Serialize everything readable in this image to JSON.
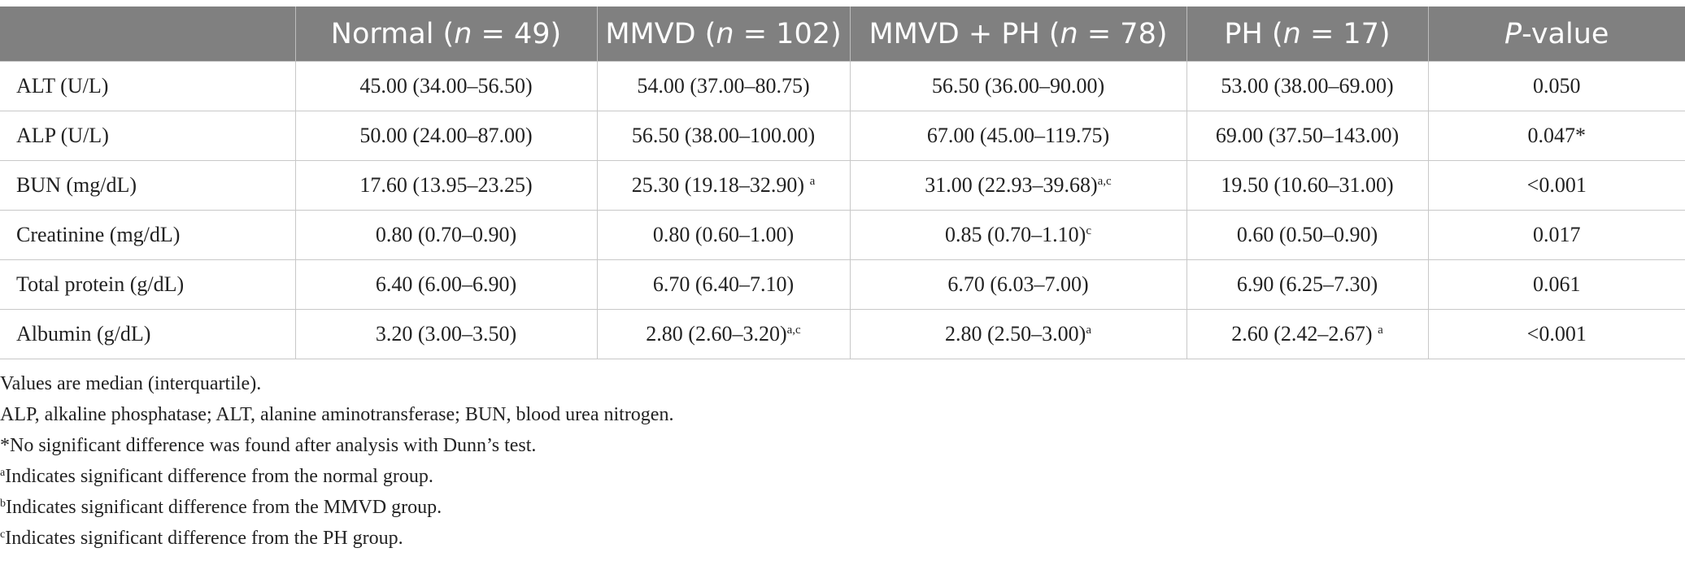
{
  "table": {
    "header": [
      {
        "label": "",
        "pre": "",
        "italic": "",
        "post": ""
      },
      {
        "pre": "Normal (",
        "italic": "n",
        "post": " = 49)"
      },
      {
        "pre": "MMVD (",
        "italic": "n",
        "post": " = 102)"
      },
      {
        "pre": "MMVD + PH (",
        "italic": "n",
        "post": " = 78)"
      },
      {
        "pre": "PH (",
        "italic": "n",
        "post": " = 17)"
      },
      {
        "pre": "",
        "italic": "P",
        "post": "-value"
      }
    ],
    "rows": [
      {
        "label": "ALT (U/L)",
        "cells": [
          {
            "v": "45.00 (34.00–56.50)",
            "s": ""
          },
          {
            "v": "54.00 (37.00–80.75)",
            "s": ""
          },
          {
            "v": "56.50 (36.00–90.00)",
            "s": ""
          },
          {
            "v": "53.00 (38.00–69.00)",
            "s": ""
          }
        ],
        "p": "0.050"
      },
      {
        "label": "ALP (U/L)",
        "cells": [
          {
            "v": "50.00 (24.00–87.00)",
            "s": ""
          },
          {
            "v": "56.50 (38.00–100.00)",
            "s": ""
          },
          {
            "v": "67.00 (45.00–119.75)",
            "s": ""
          },
          {
            "v": "69.00 (37.50–143.00)",
            "s": ""
          }
        ],
        "p": "0.047*"
      },
      {
        "label": "BUN (mg/dL)",
        "cells": [
          {
            "v": "17.60 (13.95–23.25)",
            "s": ""
          },
          {
            "v": "25.30 (19.18–32.90) ",
            "s": "a"
          },
          {
            "v": "31.00 (22.93–39.68)",
            "s": "a,c"
          },
          {
            "v": "19.50 (10.60–31.00)",
            "s": ""
          }
        ],
        "p": "<0.001"
      },
      {
        "label": "Creatinine (mg/dL)",
        "cells": [
          {
            "v": "0.80 (0.70–0.90)",
            "s": ""
          },
          {
            "v": "0.80 (0.60–1.00)",
            "s": ""
          },
          {
            "v": "0.85 (0.70–1.10)",
            "s": "c"
          },
          {
            "v": "0.60 (0.50–0.90)",
            "s": ""
          }
        ],
        "p": "0.017"
      },
      {
        "label": "Total protein (g/dL)",
        "cells": [
          {
            "v": "6.40 (6.00–6.90)",
            "s": ""
          },
          {
            "v": "6.70 (6.40–7.10)",
            "s": ""
          },
          {
            "v": "6.70 (6.03–7.00)",
            "s": ""
          },
          {
            "v": "6.90 (6.25–7.30)",
            "s": ""
          }
        ],
        "p": "0.061"
      },
      {
        "label": "Albumin (g/dL)",
        "cells": [
          {
            "v": "3.20 (3.00–3.50)",
            "s": ""
          },
          {
            "v": "2.80 (2.60–3.20)",
            "s": "a,c"
          },
          {
            "v": "2.80 (2.50–3.00)",
            "s": "a"
          },
          {
            "v": "2.60 (2.42–2.67) ",
            "s": "a"
          }
        ],
        "p": "<0.001"
      }
    ]
  },
  "footnotes": [
    {
      "sup": "",
      "text": "Values are median (interquartile)."
    },
    {
      "sup": "",
      "text": "ALP, alkaline phosphatase; ALT, alanine aminotransferase; BUN, blood urea nitrogen."
    },
    {
      "sup": "",
      "text": "*No significant difference was found after analysis with Dunn’s test."
    },
    {
      "sup": "a",
      "text": "Indicates significant difference from the normal group."
    },
    {
      "sup": "b",
      "text": "Indicates significant difference from the MMVD group."
    },
    {
      "sup": "c",
      "text": "Indicates significant difference from the PH group."
    }
  ]
}
